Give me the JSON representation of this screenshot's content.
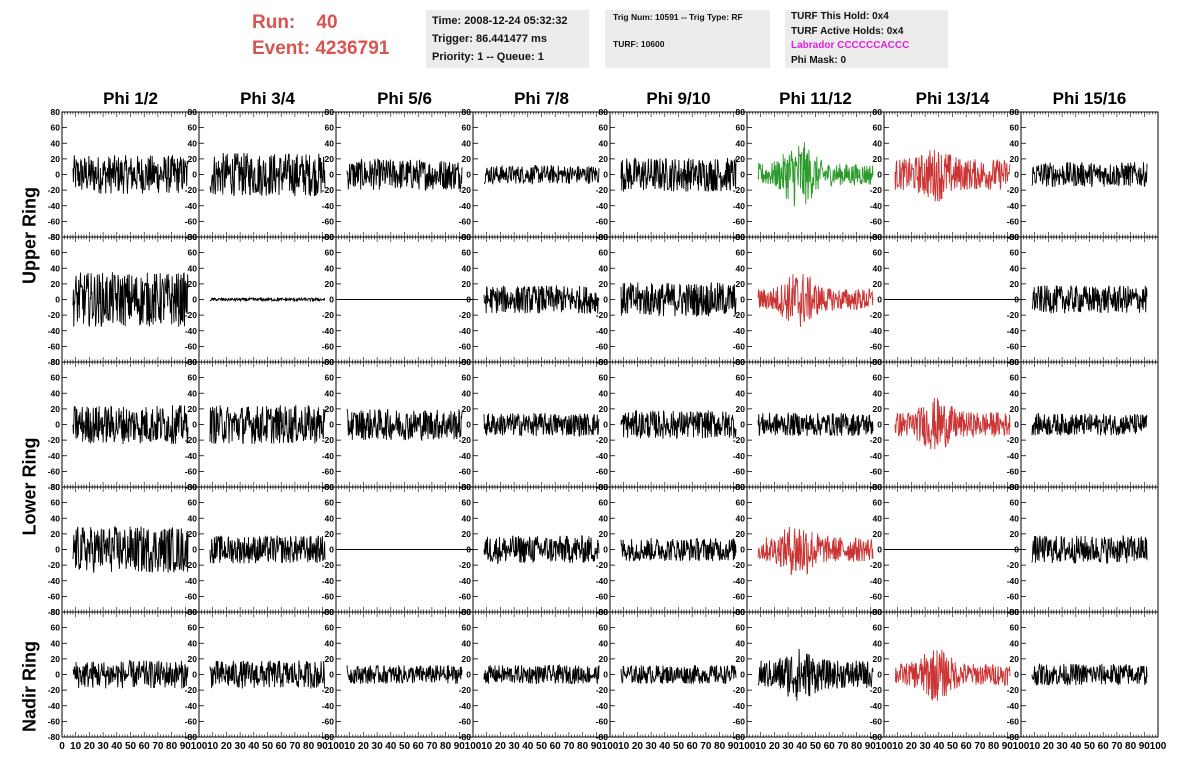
{
  "header": {
    "run_label": "Run:",
    "run_value": "40",
    "event_label": "Event:",
    "event_value": "4236791",
    "time": "Time: 2008-12-24 05:32:32",
    "trigger": "Trigger: 86.441477 ms",
    "priority": "Priority: 1 -- Queue: 1",
    "trig_num": "Trig Num: 10591 -- Trig Type: RF",
    "turf": "TURF: 10600",
    "turf_this_hold": "TURF This Hold: 0x4",
    "turf_active_holds": "TURF Active Holds: 0x4",
    "labrador": "Labrador CCCCCCACCC",
    "phi_mask": "Phi Mask: 0"
  },
  "colors": {
    "run_text": "#d9534f",
    "labrador_text": "#e01fe0",
    "trace_default": "#000000",
    "trace_green": "#2a9a2a",
    "trace_red": "#cc3333",
    "info_bg": "#ececec"
  },
  "chart_data": {
    "type": "line",
    "columns": [
      "Phi 1/2",
      "Phi 3/4",
      "Phi 5/6",
      "Phi 7/8",
      "Phi 9/10",
      "Phi 11/12",
      "Phi 13/14",
      "Phi 15/16"
    ],
    "rows": [
      "Upper Ring",
      "Upper Ring",
      "Lower Ring",
      "Lower Ring",
      "Nadir Ring"
    ],
    "row_labels": [
      {
        "text": "Upper Ring"
      },
      {
        "text": "Lower Ring"
      },
      {
        "text": "Nadir Ring"
      }
    ],
    "xlim": [
      0,
      100
    ],
    "ylim": [
      -80,
      80
    ],
    "x_ticks": [
      0,
      10,
      20,
      30,
      40,
      50,
      60,
      70,
      80,
      90,
      100
    ],
    "y_ticks": [
      -80,
      -60,
      -40,
      -20,
      0,
      20,
      40,
      60,
      80
    ],
    "panels": [
      [
        {
          "color": "black",
          "amp": 25,
          "burst": 0,
          "flat": false
        },
        {
          "color": "black",
          "amp": 28,
          "burst": 0,
          "flat": false
        },
        {
          "color": "black",
          "amp": 20,
          "burst": 0,
          "flat": false
        },
        {
          "color": "black",
          "amp": 12,
          "burst": 0,
          "flat": false
        },
        {
          "color": "black",
          "amp": 22,
          "burst": 0,
          "flat": false
        },
        {
          "color": "green",
          "amp": 14,
          "burst": 45,
          "flat": false
        },
        {
          "color": "red",
          "amp": 20,
          "burst": 35,
          "flat": false
        },
        {
          "color": "black",
          "amp": 16,
          "burst": 0,
          "flat": false
        }
      ],
      [
        {
          "color": "black",
          "amp": 35,
          "burst": 0,
          "flat": false
        },
        {
          "color": "black",
          "amp": 2,
          "burst": 0,
          "flat": false
        },
        {
          "color": "black",
          "amp": 0,
          "burst": 0,
          "flat": true
        },
        {
          "color": "black",
          "amp": 18,
          "burst": 0,
          "flat": false
        },
        {
          "color": "black",
          "amp": 22,
          "burst": 0,
          "flat": false
        },
        {
          "color": "red",
          "amp": 14,
          "burst": 38,
          "flat": false
        },
        {
          "color": "black",
          "amp": 0,
          "burst": 0,
          "flat": true
        },
        {
          "color": "black",
          "amp": 18,
          "burst": 0,
          "flat": false
        }
      ],
      [
        {
          "color": "black",
          "amp": 25,
          "burst": 0,
          "flat": false
        },
        {
          "color": "black",
          "amp": 25,
          "burst": 0,
          "flat": false
        },
        {
          "color": "black",
          "amp": 20,
          "burst": 0,
          "flat": false
        },
        {
          "color": "black",
          "amp": 15,
          "burst": 0,
          "flat": false
        },
        {
          "color": "black",
          "amp": 18,
          "burst": 0,
          "flat": false
        },
        {
          "color": "black",
          "amp": 15,
          "burst": 0,
          "flat": false
        },
        {
          "color": "red",
          "amp": 16,
          "burst": 35,
          "flat": false
        },
        {
          "color": "black",
          "amp": 14,
          "burst": 0,
          "flat": false
        }
      ],
      [
        {
          "color": "black",
          "amp": 30,
          "burst": 0,
          "flat": false
        },
        {
          "color": "black",
          "amp": 18,
          "burst": 0,
          "flat": false
        },
        {
          "color": "black",
          "amp": 0,
          "burst": 0,
          "flat": true
        },
        {
          "color": "black",
          "amp": 18,
          "burst": 0,
          "flat": false
        },
        {
          "color": "black",
          "amp": 15,
          "burst": 0,
          "flat": false
        },
        {
          "color": "red",
          "amp": 16,
          "burst": 38,
          "flat": false
        },
        {
          "color": "black",
          "amp": 0,
          "burst": 0,
          "flat": true
        },
        {
          "color": "black",
          "amp": 18,
          "burst": 0,
          "flat": false
        }
      ],
      [
        {
          "color": "black",
          "amp": 18,
          "burst": 0,
          "flat": false
        },
        {
          "color": "black",
          "amp": 18,
          "burst": 0,
          "flat": false
        },
        {
          "color": "black",
          "amp": 12,
          "burst": 0,
          "flat": false
        },
        {
          "color": "black",
          "amp": 12,
          "burst": 0,
          "flat": false
        },
        {
          "color": "black",
          "amp": 12,
          "burst": 0,
          "flat": false
        },
        {
          "color": "black",
          "amp": 18,
          "burst": 35,
          "flat": false
        },
        {
          "color": "red",
          "amp": 14,
          "burst": 35,
          "flat": false
        },
        {
          "color": "black",
          "amp": 14,
          "burst": 0,
          "flat": false
        }
      ]
    ]
  }
}
